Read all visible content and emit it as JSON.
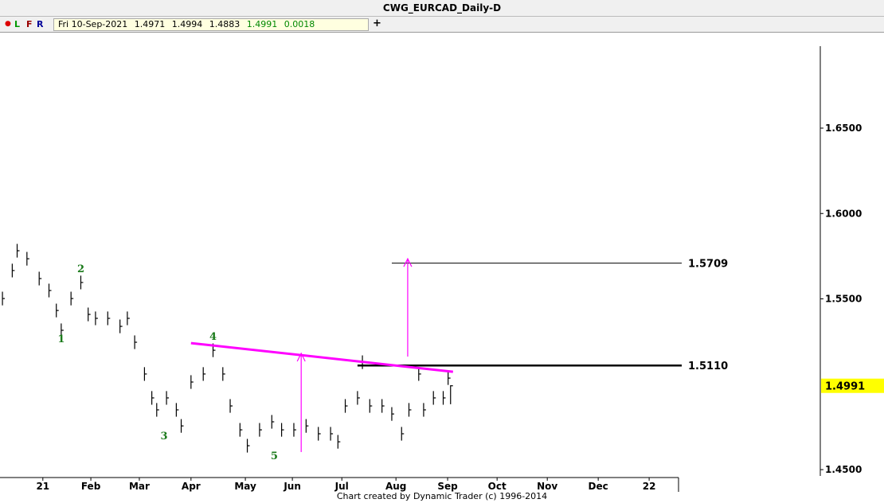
{
  "chart_data": {
    "type": "ohlc",
    "title": "CWG_EURCAD_Daily-D",
    "bar_color": "#000000",
    "xlim": [
      0,
      277.1
    ],
    "xticks": [
      {
        "value": 17.5,
        "label": "21"
      },
      {
        "value": 37.1,
        "label": "Feb"
      },
      {
        "value": 56.9,
        "label": "Mar"
      },
      {
        "value": 78,
        "label": "Apr"
      },
      {
        "value": 100.2,
        "label": "May"
      },
      {
        "value": 119.4,
        "label": "Jun"
      },
      {
        "value": 139.6,
        "label": "Jul"
      },
      {
        "value": 161.7,
        "label": "Aug"
      },
      {
        "value": 182.8,
        "label": "Sep"
      },
      {
        "value": 203,
        "label": "Oct"
      },
      {
        "value": 223.5,
        "label": "Nov"
      },
      {
        "value": 244.3,
        "label": "Dec"
      },
      {
        "value": 265.1,
        "label": "22"
      }
    ],
    "ylim": [
      1.4463,
      1.698
    ],
    "yticks": [
      {
        "value": 1.65,
        "label": "1.6500"
      },
      {
        "value": 1.6,
        "label": "1.6000"
      },
      {
        "value": 1.55,
        "label": "1.5500"
      },
      {
        "value": 1.45,
        "label": "1.4500"
      }
    ],
    "x": [
      1,
      5,
      7,
      11,
      16,
      20,
      23,
      25,
      29,
      33,
      36,
      39,
      44,
      49,
      52,
      55,
      59,
      62,
      64,
      68,
      72,
      74,
      78,
      83,
      87,
      91,
      94,
      98,
      101,
      106,
      111,
      115,
      120,
      125,
      130,
      135,
      138,
      141,
      146,
      148,
      151,
      156,
      160,
      164,
      167,
      171,
      173,
      177,
      181,
      183,
      184
    ],
    "high": [
      1.5542,
      1.5706,
      1.5822,
      1.5775,
      1.5659,
      1.5589,
      1.5472,
      1.5356,
      1.5542,
      1.5636,
      1.5449,
      1.5426,
      1.5426,
      1.5379,
      1.5426,
      1.5286,
      1.51,
      1.496,
      1.489,
      1.496,
      1.489,
      1.4796,
      1.5053,
      1.51,
      1.5239,
      1.51,
      1.4913,
      1.4773,
      1.468,
      1.4773,
      1.482,
      1.4773,
      1.4773,
      1.4796,
      1.475,
      1.475,
      1.4703,
      1.4913,
      1.496,
      1.5169,
      1.4913,
      1.4913,
      1.4866,
      1.475,
      1.489,
      1.51,
      1.489,
      1.496,
      1.496,
      1.5076,
      1.4994
    ],
    "low": [
      1.5462,
      1.5626,
      1.5742,
      1.5695,
      1.5579,
      1.5509,
      1.5392,
      1.5276,
      1.5462,
      1.5556,
      1.5369,
      1.5346,
      1.5346,
      1.5299,
      1.5346,
      1.5206,
      1.502,
      1.488,
      1.481,
      1.488,
      1.481,
      1.4716,
      1.4973,
      1.502,
      1.5159,
      1.502,
      1.4833,
      1.4693,
      1.46,
      1.4693,
      1.474,
      1.4693,
      1.4693,
      1.4716,
      1.467,
      1.467,
      1.4623,
      1.4833,
      1.488,
      1.5089,
      1.4833,
      1.4833,
      1.4786,
      1.467,
      1.481,
      1.502,
      1.481,
      1.488,
      1.488,
      1.4996,
      1.4883
    ],
    "close": [
      1.5502,
      1.5666,
      1.5782,
      1.5735,
      1.5619,
      1.5549,
      1.5432,
      1.5316,
      1.5502,
      1.5596,
      1.5409,
      1.5386,
      1.5386,
      1.5339,
      1.5386,
      1.5246,
      1.506,
      1.492,
      1.485,
      1.492,
      1.485,
      1.4756,
      1.5013,
      1.506,
      1.5199,
      1.506,
      1.4873,
      1.4733,
      1.464,
      1.4733,
      1.478,
      1.4733,
      1.4733,
      1.4756,
      1.471,
      1.471,
      1.4663,
      1.4873,
      1.492,
      1.5129,
      1.4873,
      1.4873,
      1.4826,
      1.471,
      1.485,
      1.506,
      1.485,
      1.492,
      1.492,
      1.5036,
      1.4991
    ],
    "last_price": {
      "value": 1.4991,
      "label": "1.4991",
      "color": "#ffff00"
    },
    "levels": [
      {
        "value": 1.5709,
        "label": "1.5709",
        "x_start": 160,
        "width": 1,
        "color": "#000000"
      },
      {
        "value": 1.511,
        "label": "1.5110",
        "x_start": 146,
        "width": 2.5,
        "color": "#000000"
      }
    ],
    "trendline": {
      "x": [
        78,
        185
      ],
      "y": [
        1.5241,
        1.5073
      ],
      "color": "#ff00ff"
    },
    "arrows": [
      {
        "x": 123,
        "from": 1.4603,
        "to": 1.5181,
        "color": "#ff00ff"
      },
      {
        "x": 166.5,
        "from": 1.5162,
        "to": 1.5735,
        "color": "#ff00ff"
      }
    ],
    "wave_labels": [
      {
        "label": "1",
        "x": 25,
        "y": 1.5269
      },
      {
        "label": "2",
        "x": 33,
        "y": 1.5679
      },
      {
        "label": "3",
        "x": 67,
        "y": 1.47
      },
      {
        "label": "4",
        "x": 87,
        "y": 1.5283
      },
      {
        "label": "5",
        "x": 112,
        "y": 1.4584
      }
    ],
    "wave_color": "#1a7a1a"
  },
  "toolbar": {
    "buttons": [
      "L",
      "F",
      "R",
      "+"
    ],
    "info": {
      "date": "Fri 10-Sep-2021",
      "open": "1.4971",
      "high": "1.4994",
      "low": "1.4883",
      "close": "1.4991",
      "change": "0.0018"
    }
  },
  "footer": "Chart created by Dynamic Trader  (c) 1996-2014"
}
